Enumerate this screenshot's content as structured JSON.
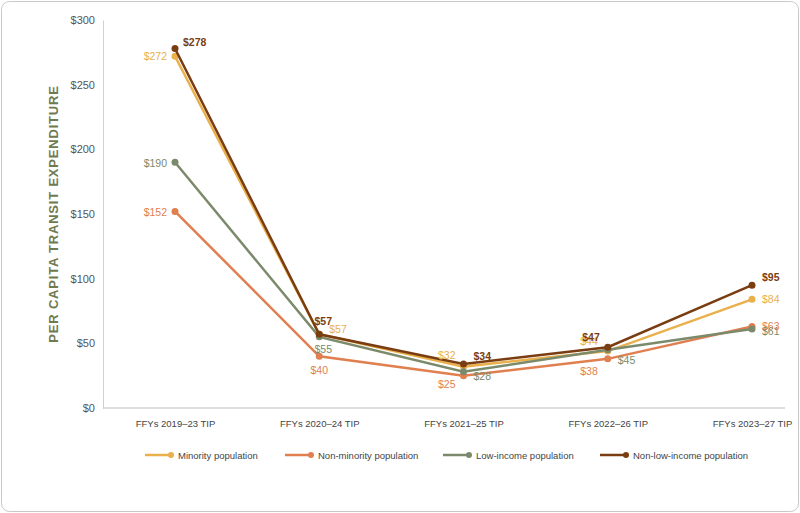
{
  "chart_data": {
    "type": "line",
    "y_label": "PER CAPITA TRANSIT EXPENDITURE",
    "categories": [
      "FFYs 2019–23 TIP",
      "FFYs 2020–24 TIP",
      "FFYs 2021–25 TIP",
      "FFYs 2022–26 TIP",
      "FFYs 2023–27 TIP"
    ],
    "series": [
      {
        "name": "Minority population",
        "color": "#e9b04c",
        "marker": "circle",
        "values": [
          272,
          57,
          32,
          44,
          84
        ],
        "value_labels": [
          "$272",
          "$57",
          "$32",
          "$44",
          "$84"
        ]
      },
      {
        "name": "Non-minority population",
        "color": "#e07f4f",
        "marker": "circle",
        "values": [
          152,
          40,
          25,
          38,
          63
        ],
        "value_labels": [
          "$152",
          "$40",
          "$25",
          "$38",
          "$63"
        ]
      },
      {
        "name": "Low-income population",
        "color": "#7b8a6b",
        "marker": "circle",
        "values": [
          190,
          55,
          28,
          45,
          61
        ],
        "value_labels": [
          "$190",
          "$55",
          "$28",
          "$45",
          "$61"
        ]
      },
      {
        "name": "Non-low-income population",
        "color": "#7a3d12",
        "marker": "circle",
        "values": [
          278,
          57,
          34,
          47,
          95
        ],
        "value_labels": [
          "$278",
          "$57",
          "$34",
          "$47",
          "$95"
        ]
      }
    ],
    "ylim": [
      0,
      300
    ],
    "yticks": [
      {
        "value": 0,
        "label": "$0"
      },
      {
        "value": 50,
        "label": "$50"
      },
      {
        "value": 100,
        "label": "$100"
      },
      {
        "value": 150,
        "label": "$150"
      },
      {
        "value": 200,
        "label": "$200"
      },
      {
        "value": 250,
        "label": "$250"
      },
      {
        "value": 300,
        "label": "$300"
      }
    ],
    "grid": false,
    "data_labels": true,
    "legend": "bottom"
  }
}
